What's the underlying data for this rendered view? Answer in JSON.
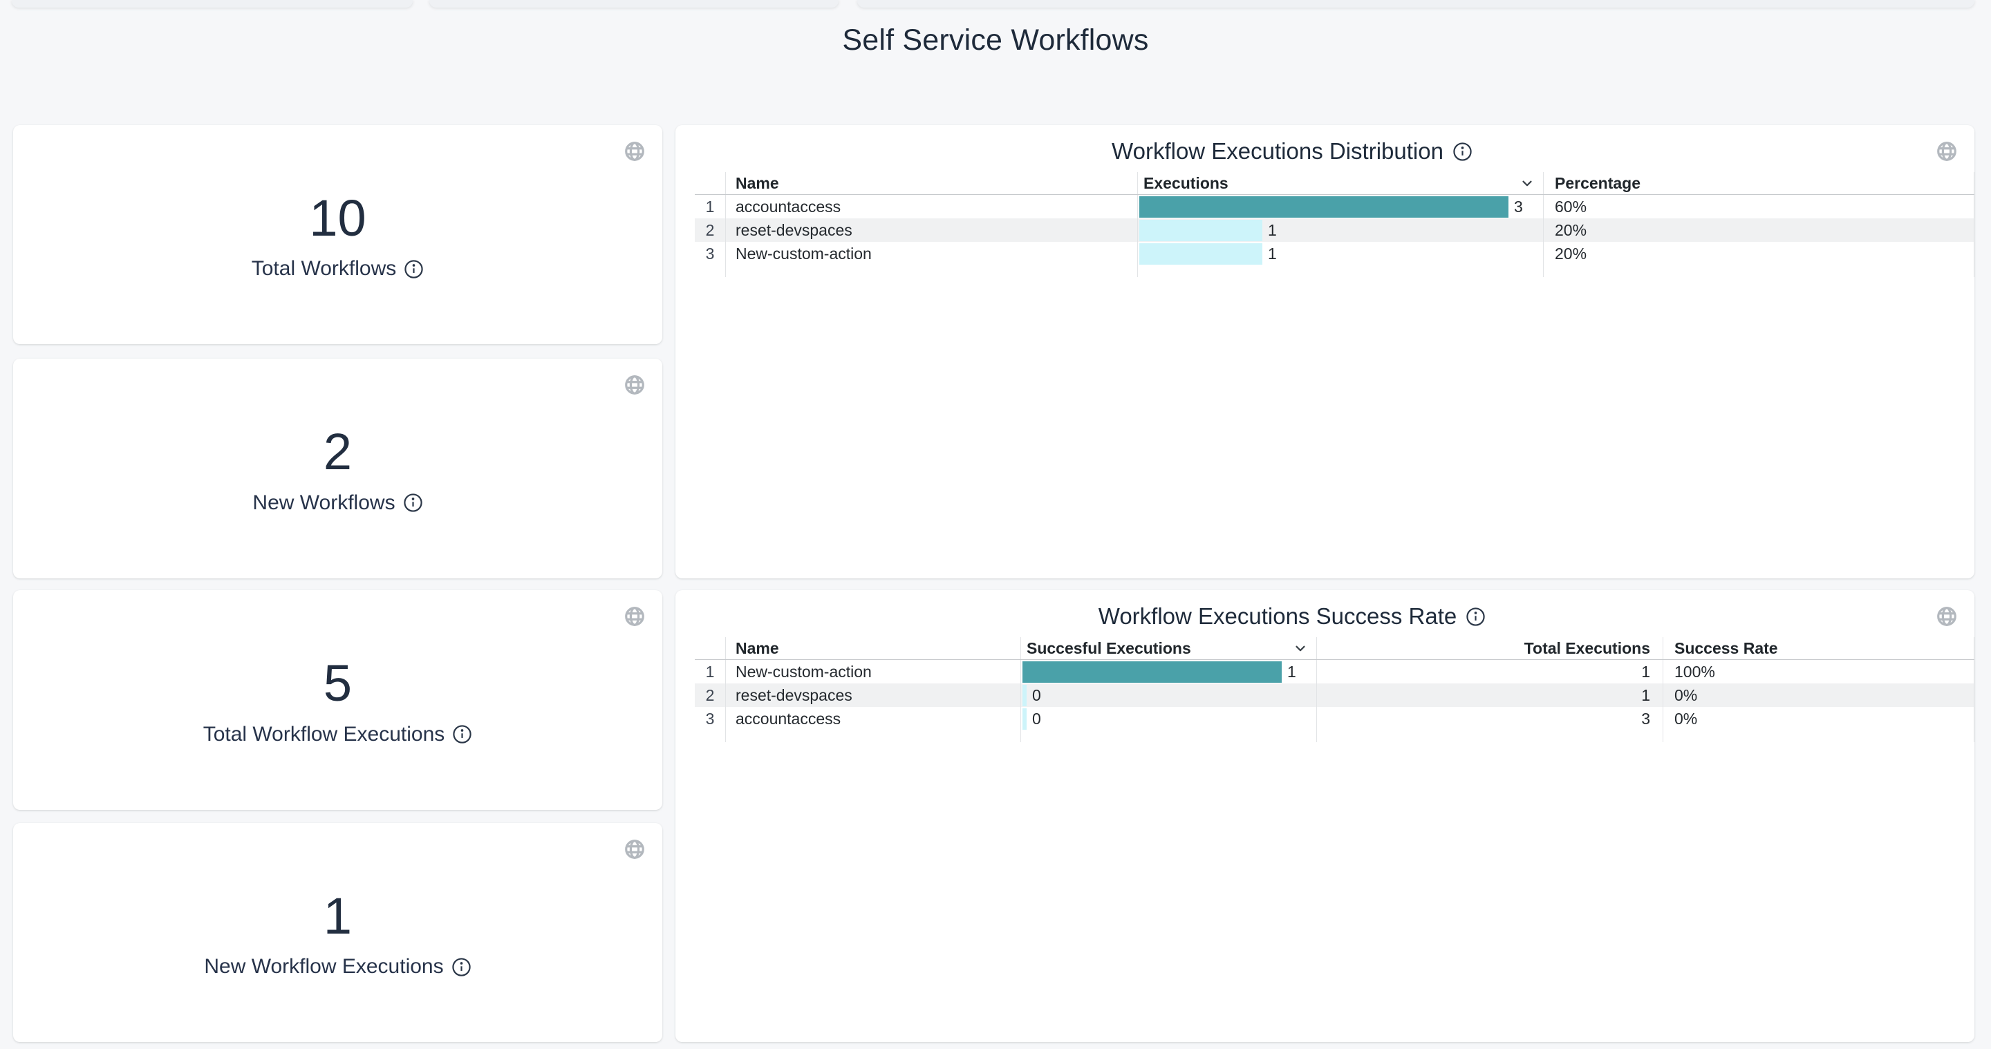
{
  "page": {
    "title": "Self Service Workflows",
    "background_color": "#f6f7f9",
    "card_color": "#ffffff",
    "text_color": "#222e40",
    "accent_teal": "#4aa1a9",
    "accent_cyan": "#cdf4fa",
    "stripe_color": "#f0f1f2",
    "icon_color": "#b3b8be"
  },
  "stat_cards": [
    {
      "value": "10",
      "label": "Total Workflows"
    },
    {
      "value": "2",
      "label": "New Workflows"
    },
    {
      "value": "5",
      "label": "Total Workflow Executions"
    },
    {
      "value": "1",
      "label": "New Workflow Executions"
    }
  ],
  "panels": [
    {
      "title": "Workflow Executions Distribution",
      "columns": [
        {
          "label": "",
          "sortable": false
        },
        {
          "label": "Name",
          "sortable": false
        },
        {
          "label": "Executions",
          "sortable": true
        },
        {
          "label": "Percentage",
          "sortable": false
        }
      ],
      "max_value": 3,
      "rows": [
        {
          "index": "1",
          "name": "accountaccess",
          "value": 3,
          "percentage": "60%",
          "bar_color": "#4aa1a9"
        },
        {
          "index": "2",
          "name": "reset-devspaces",
          "value": 1,
          "percentage": "20%",
          "bar_color": "#cdf4fa"
        },
        {
          "index": "3",
          "name": "New-custom-action",
          "value": 1,
          "percentage": "20%",
          "bar_color": "#cdf4fa"
        }
      ]
    },
    {
      "title": "Workflow Executions Success Rate",
      "columns": [
        {
          "label": "",
          "sortable": false
        },
        {
          "label": "Name",
          "sortable": false
        },
        {
          "label": "Succesful Executions",
          "sortable": true
        },
        {
          "label": "Total Executions",
          "sortable": false
        },
        {
          "label": "Success Rate",
          "sortable": false
        }
      ],
      "max_value": 1,
      "rows": [
        {
          "index": "1",
          "name": "New-custom-action",
          "value": 1,
          "total": "1",
          "rate": "100%",
          "bar_color": "#4aa1a9"
        },
        {
          "index": "2",
          "name": "reset-devspaces",
          "value": 0,
          "total": "1",
          "rate": "0%",
          "bar_color": "#cdf4fa"
        },
        {
          "index": "3",
          "name": "accountaccess",
          "value": 0,
          "total": "3",
          "rate": "0%",
          "bar_color": "#cdf4fa"
        }
      ]
    }
  ],
  "icons": {
    "card_corner": "globe-icon",
    "label_suffix": "info-icon",
    "sort_indicator": "chevron-down-icon"
  }
}
